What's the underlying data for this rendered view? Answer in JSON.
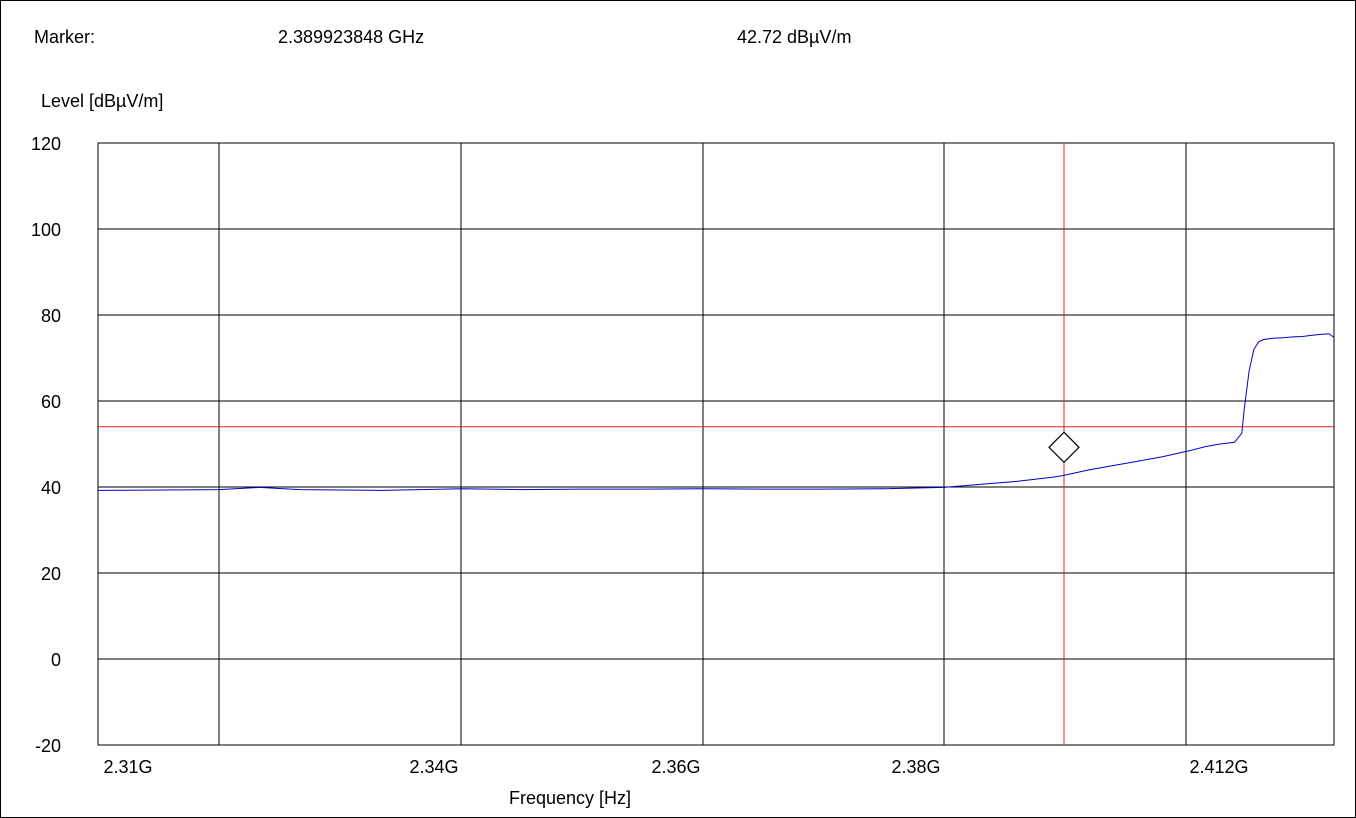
{
  "marker": {
    "label": "Marker:",
    "frequency": "2.389923848 GHz",
    "level": "42.72 dBµV/m"
  },
  "chart_data": {
    "type": "line",
    "xlabel": "Frequency [Hz]",
    "ylabel": "Level [dBµV/m]",
    "xlim": [
      2.305,
      2.4305
    ],
    "ylim": [
      -20,
      120
    ],
    "grid": true,
    "yticks": [
      120,
      100,
      80,
      60,
      40,
      20,
      0,
      -20
    ],
    "xtick_labels": [
      "2.31G",
      "2.34G",
      "2.36G",
      "2.38G",
      "2.412G"
    ],
    "limit_line": 54,
    "marker_x": 2.389923848,
    "marker_y": 42.72,
    "colors": {
      "trace": "#0000c8",
      "limit": "#e02020",
      "marker_line": "#e02020",
      "grid": "#000000"
    },
    "series": [
      {
        "x": [
          2.305,
          2.31,
          2.315,
          2.32,
          2.325,
          2.33,
          2.335,
          2.34,
          2.345,
          2.35,
          2.355,
          2.36,
          2.365,
          2.37,
          2.375,
          2.38,
          2.383,
          2.386,
          2.389,
          2.3899,
          2.392,
          2.395,
          2.398,
          2.401,
          2.404,
          2.407,
          2.41,
          2.4115,
          2.412,
          2.413,
          2.414,
          2.415,
          2.416,
          2.418,
          2.42,
          2.422,
          2.424,
          2.426,
          2.428,
          2.4295,
          2.4305
        ],
        "y": [
          39.2,
          39.4,
          39.9,
          39.4,
          39.3,
          39.2,
          39.4,
          39.6,
          39.4,
          39.5,
          39.5,
          39.6,
          39.5,
          39.5,
          39.6,
          39.9,
          40.6,
          41.3,
          42.3,
          42.7,
          44.0,
          45.5,
          47.0,
          48.5,
          49.4,
          50.0,
          50.4,
          52.5,
          58.0,
          67.0,
          72.0,
          73.8,
          74.3,
          74.6,
          74.7,
          74.9,
          75.0,
          75.3,
          75.5,
          75.6,
          74.8
        ]
      }
    ]
  }
}
